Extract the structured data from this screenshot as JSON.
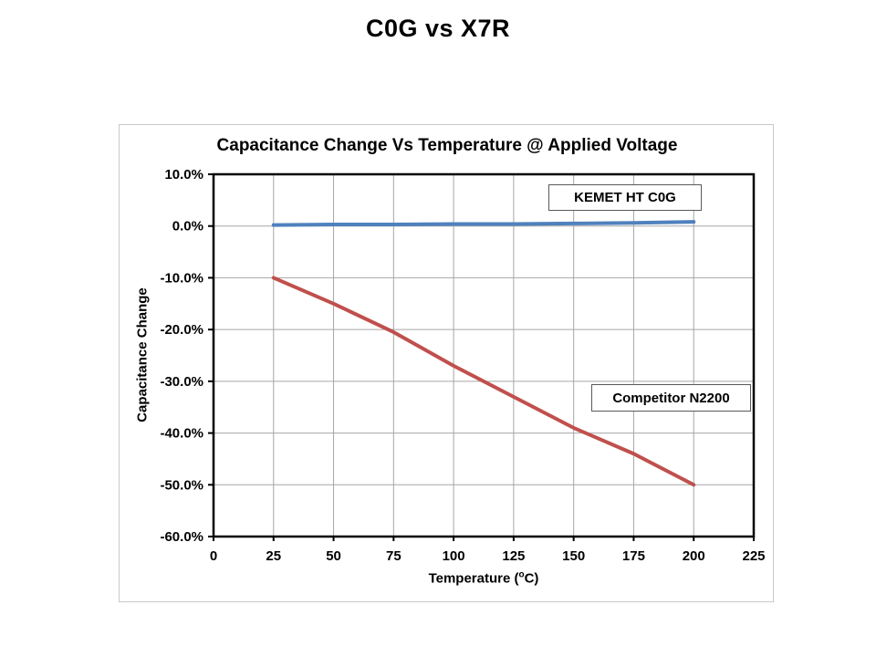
{
  "page": {
    "title": "C0G vs X7R",
    "background": "#ffffff"
  },
  "chart": {
    "title": "Capacitance Change Vs Temperature @ Applied Voltage",
    "y_axis_title": "Capacitance Change",
    "x_axis_title_parts": {
      "prefix": "Temperature (",
      "sup": "o",
      "suffix": "C)"
    },
    "annotations": [
      {
        "id": "kemet",
        "label": "KEMET HT C0G"
      },
      {
        "id": "competitor",
        "label": "Competitor N2200"
      }
    ]
  },
  "chart_data": {
    "type": "line",
    "title": "Capacitance Change Vs Temperature @ Applied Voltage",
    "xlabel": "Temperature (oC)",
    "ylabel": "Capacitance Change",
    "x": [
      25,
      50,
      75,
      100,
      125,
      150,
      175,
      200
    ],
    "series": [
      {
        "name": "KEMET HT C0G",
        "color": "#4f81bd",
        "values": [
          0.2,
          0.3,
          0.3,
          0.4,
          0.4,
          0.5,
          0.6,
          0.8
        ]
      },
      {
        "name": "Competitor N2200",
        "color": "#c0504d",
        "values": [
          -10,
          -15,
          -20.5,
          -27,
          -33,
          -39,
          -44,
          -50
        ]
      }
    ],
    "xlim": [
      0,
      225
    ],
    "ylim": [
      -60,
      10
    ],
    "x_ticks": [
      0,
      25,
      50,
      75,
      100,
      125,
      150,
      175,
      200,
      225
    ],
    "y_ticks": [
      10,
      0,
      -10,
      -20,
      -30,
      -40,
      -50,
      -60
    ],
    "y_tick_labels": [
      "10.0%",
      "0.0%",
      "-10.0%",
      "-20.0%",
      "-30.0%",
      "-40.0%",
      "-50.0%",
      "-60.0%"
    ],
    "grid": true,
    "legend_position": "in-plot-text-boxes",
    "gridline_color": "#a6a6a6",
    "plot_border_color": "#000000",
    "tick_label_color": "#000000",
    "line_width": 4
  }
}
